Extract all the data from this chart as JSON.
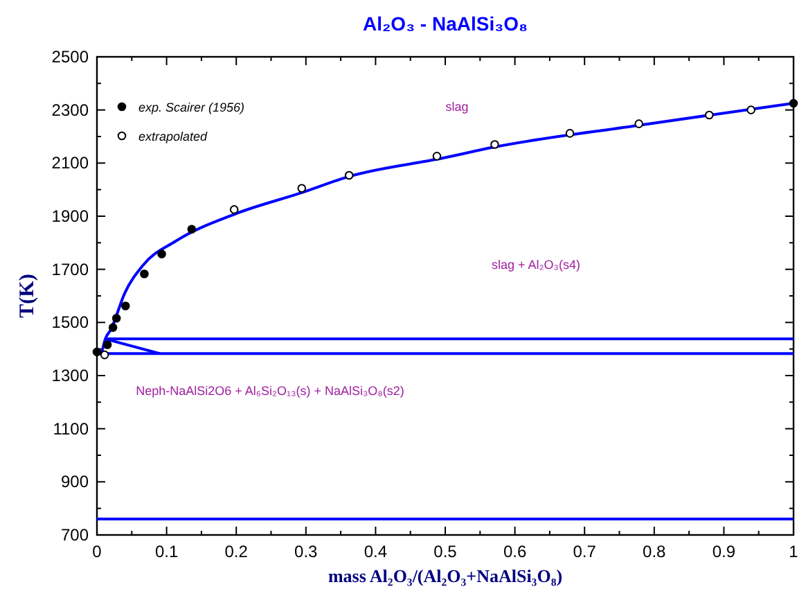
{
  "chart_data": {
    "type": "line",
    "title": "Al₂O₃ - NaAlSi₃O₈",
    "xlabel": "mass Al₂O₃/(Al₂O₃+NaAlSi₃O₈)",
    "ylabel": "T(K)",
    "xlim": [
      0,
      1
    ],
    "ylim": [
      700,
      2500
    ],
    "xticks": [
      0,
      {
        "value": 0.05,
        "label": null
      },
      0.1,
      {
        "value": 0.15,
        "label": null
      },
      0.2,
      {
        "value": 0.25,
        "label": null
      },
      0.3,
      {
        "value": 0.35,
        "label": null
      },
      0.4,
      {
        "value": 0.45,
        "label": null
      },
      0.5,
      {
        "value": 0.55,
        "label": null
      },
      0.6,
      {
        "value": 0.65,
        "label": null
      },
      0.7,
      {
        "value": 0.75,
        "label": null
      },
      0.8,
      {
        "value": 0.85,
        "label": null
      },
      0.9,
      {
        "value": 0.95,
        "label": null
      },
      1
    ],
    "yticks": [
      700,
      {
        "value": 800,
        "label": null
      },
      900,
      {
        "value": 1000,
        "label": null
      },
      1100,
      {
        "value": 1200,
        "label": null
      },
      1300,
      {
        "value": 1400,
        "label": null
      },
      1500,
      {
        "value": 1600,
        "label": null
      },
      1700,
      {
        "value": 1800,
        "label": null
      },
      1900,
      {
        "value": 2000,
        "label": null
      },
      2100,
      {
        "value": 2200,
        "label": null
      },
      2300,
      {
        "value": 2400,
        "label": null
      },
      2500
    ],
    "grid": false,
    "legend": "top left",
    "line_style": "solid",
    "series": [
      {
        "color": "#0000ff",
        "x": [
          0.0066,
          0.012,
          0.02,
          0.04,
          0.066,
          0.113,
          0.199,
          0.292,
          0.364,
          0.497,
          0.57,
          0.775,
          0.881,
          1
        ],
        "values": [
          1383,
          1438,
          1473,
          1611,
          1715,
          1806,
          1909,
          1987,
          2051,
          2119,
          2160,
          2241,
          2281,
          2325
        ]
      },
      {
        "color": "#0000ff",
        "x": [
          0.012,
          1
        ],
        "values": [
          1438,
          1438
        ]
      },
      {
        "color": "#0000ff",
        "x": [
          0,
          1
        ],
        "values": [
          1383,
          1383
        ]
      },
      {
        "color": "#0000ff",
        "x": [
          0.012,
          0.09
        ],
        "values": [
          1438,
          1383
        ]
      },
      {
        "color": "#0000ff",
        "x": [
          0,
          1
        ],
        "values": [
          760,
          760
        ]
      },
      {
        "type": "scatter",
        "name": "exp. Scairer (1956)",
        "color": "#000000",
        "marker": "circle",
        "x": [
          0,
          0.015,
          0.023,
          0.028,
          0.041,
          0.068,
          0.093,
          0.136,
          1
        ],
        "values": [
          1389,
          1416,
          1481,
          1516,
          1562,
          1683,
          1758,
          1851,
          2325
        ]
      },
      {
        "type": "scatter",
        "name": "extrapolated",
        "color": "#ffffff",
        "marker": "circle",
        "x": [
          0.011,
          0.197,
          0.294,
          0.362,
          0.488,
          0.571,
          0.679,
          0.778,
          0.879,
          0.939
        ],
        "values": [
          1378,
          1925,
          2005,
          2054,
          2126,
          2170,
          2212,
          2248,
          2281,
          2300
        ]
      }
    ],
    "annotations": [
      "slag",
      "slag + Al₂O₃(s4)",
      "Neph-NaAlSi2O6 + Al₆Si₂O₁₃(s) + NaAlSi₃O₈(s2)"
    ]
  }
}
